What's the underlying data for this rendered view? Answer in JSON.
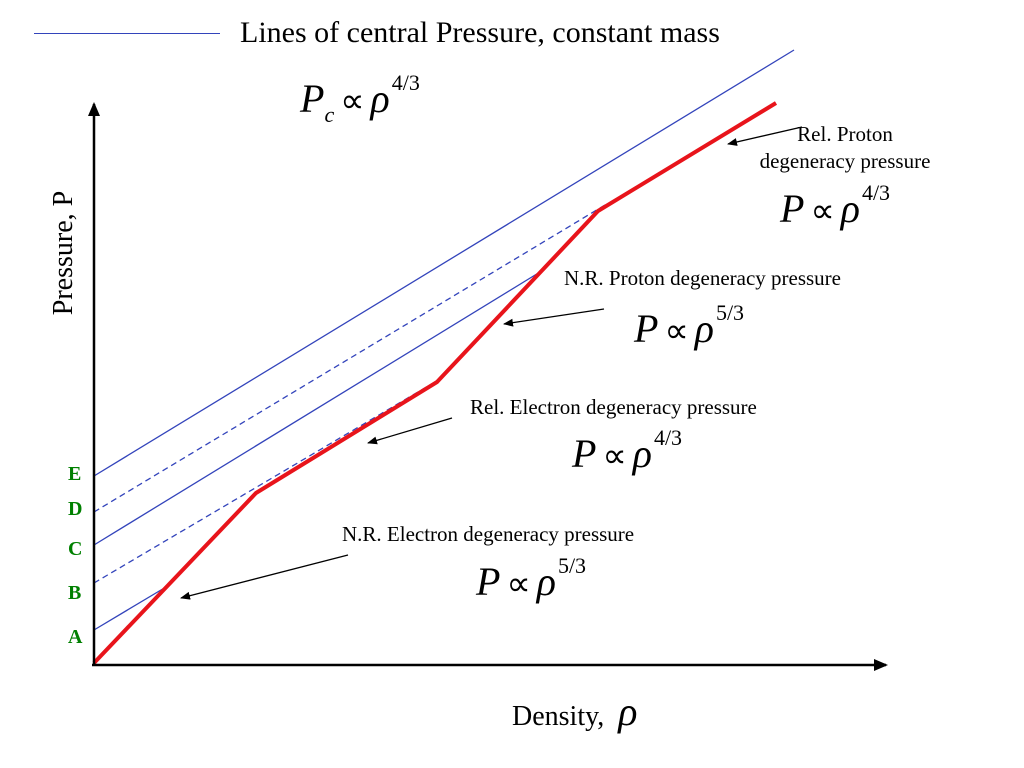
{
  "title": "Lines of central Pressure, constant mass",
  "central_equation": {
    "base": "P",
    "sub": "c",
    "symbol": "∝",
    "variable": "ρ",
    "exponent": "4/3"
  },
  "axes": {
    "ylabel": "Pressure, P",
    "xlabel": "Density,",
    "xlabel_symbol": "ρ",
    "tick_letters": [
      "A",
      "B",
      "C",
      "D",
      "E"
    ]
  },
  "annotations": [
    {
      "label_lines": [
        "Rel. Proton",
        "degeneracy pressure"
      ],
      "equation": {
        "base": "P",
        "symbol": "∝",
        "variable": "ρ",
        "exponent": "4/3"
      }
    },
    {
      "label_lines": [
        "N.R. Proton degeneracy pressure"
      ],
      "equation": {
        "base": "P",
        "symbol": "∝",
        "variable": "ρ",
        "exponent": "5/3"
      }
    },
    {
      "label_lines": [
        "Rel. Electron degeneracy pressure"
      ],
      "equation": {
        "base": "P",
        "symbol": "∝",
        "variable": "ρ",
        "exponent": "4/3"
      }
    },
    {
      "label_lines": [
        "N.R. Electron degeneracy pressure"
      ],
      "equation": {
        "base": "P",
        "symbol": "∝",
        "variable": "ρ",
        "exponent": "5/3"
      }
    }
  ],
  "colors": {
    "eos_curve": "#e8141b",
    "pressure_lines": "#3344bb",
    "tick_letters": "#008000",
    "axes": "#000000"
  }
}
